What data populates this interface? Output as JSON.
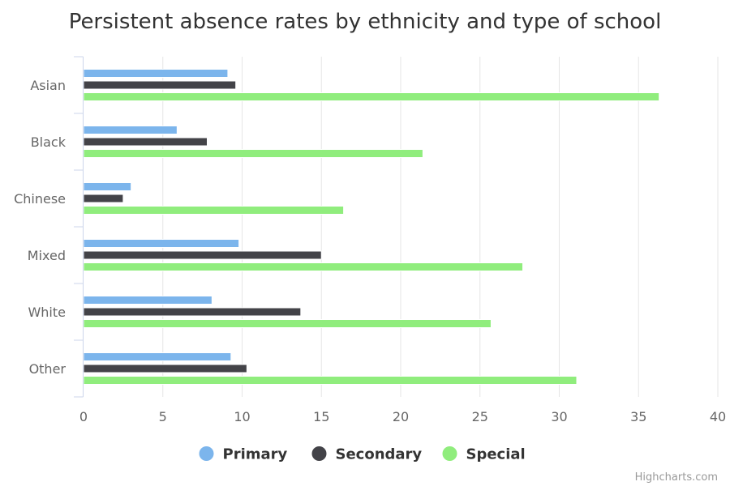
{
  "chart_data": {
    "type": "bar",
    "orientation": "horizontal",
    "title": "Persistent absence rates by ethnicity and type of school",
    "categories": [
      "Asian",
      "Black",
      "Chinese",
      "Mixed",
      "White",
      "Other"
    ],
    "series": [
      {
        "name": "Primary",
        "color": "#7cb5ec",
        "values": [
          9.1,
          5.9,
          3.0,
          9.8,
          8.1,
          9.3
        ]
      },
      {
        "name": "Secondary",
        "color": "#434348",
        "values": [
          9.6,
          7.8,
          2.5,
          15.0,
          13.7,
          10.3
        ]
      },
      {
        "name": "Special",
        "color": "#90ed7d",
        "values": [
          36.3,
          21.4,
          16.4,
          27.7,
          25.7,
          31.1
        ]
      }
    ],
    "xlim": [
      0,
      40
    ],
    "ticks": [
      0,
      5,
      10,
      15,
      20,
      25,
      30,
      35,
      40
    ],
    "grid": true,
    "legend_position": "bottom-center"
  },
  "credits": "Highcharts.com"
}
